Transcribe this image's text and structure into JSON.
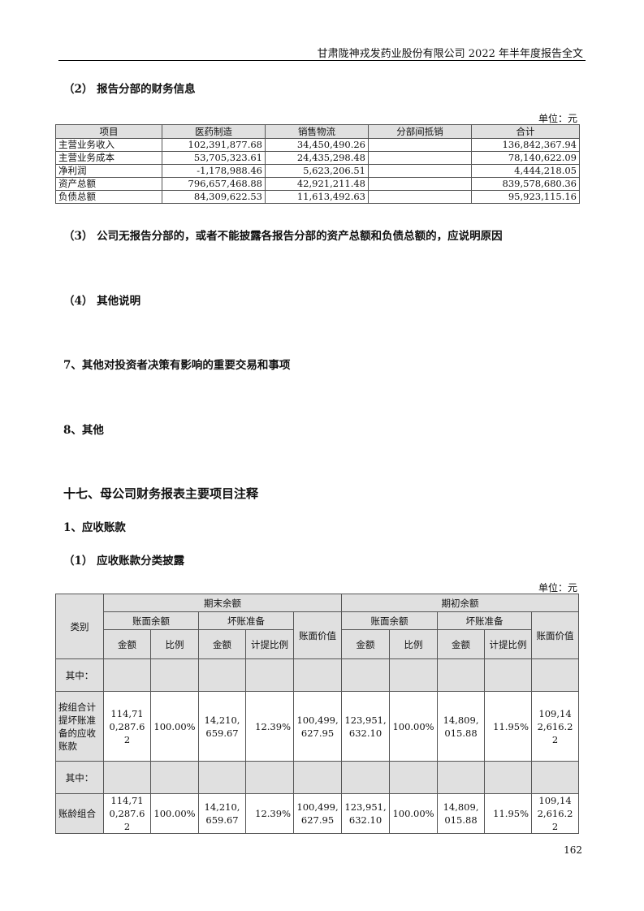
{
  "header": {
    "title": "甘肃陇神戎发药业股份有限公司 2022 年半年度报告全文"
  },
  "headings": {
    "h2": "（2） 报告分部的财务信息",
    "h3": "（3） 公司无报告分部的，或者不能披露各报告分部的资产总额和负债总额的，应说明原因",
    "h4": "（4） 其他说明",
    "s7": "7、其他对投资者决策有影响的重要交易和事项",
    "s8": "8、其他",
    "s17": "十七、母公司财务报表主要项目注释",
    "s1": "1、应收账款",
    "s1_1": "（1） 应收账款分类披露"
  },
  "unit": "单位：元",
  "segment_table": {
    "columns": [
      "项目",
      "医药制造",
      "销售物流",
      "分部间抵销",
      "合计"
    ],
    "rows": [
      [
        "主营业务收入",
        "102,391,877.68",
        "34,450,490.26",
        "",
        "136,842,367.94"
      ],
      [
        "主营业务成本",
        "53,705,323.61",
        "24,435,298.48",
        "",
        "78,140,622.09"
      ],
      [
        "净利润",
        "-1,178,988.46",
        "5,623,206.51",
        "",
        "4,444,218.05"
      ],
      [
        "资产总额",
        "796,657,468.88",
        "42,921,211.48",
        "",
        "839,578,680.36"
      ],
      [
        "负债总额",
        "84,309,622.53",
        "11,613,492.63",
        "",
        "95,923,115.16"
      ]
    ]
  },
  "receivable_table": {
    "category": "类别",
    "period_end": "期末余额",
    "period_begin": "期初余额",
    "book_balance": "账面余额",
    "bad_debt": "坏账准备",
    "book_value": "账面价值",
    "amount": "金额",
    "ratio": "比例",
    "provision_ratio": "计提比例",
    "among": "其中：",
    "rows": [
      [
        "按组合计提坏账准备的应收账款",
        "114,710,287.62",
        "100.00%",
        "14,210,659.67",
        "12.39%",
        "100,499,627.95",
        "123,951,632.10",
        "100.00%",
        "14,809,015.88",
        "11.95%",
        "109,142,616.22"
      ],
      [
        "账龄组合",
        "114,710,287.62",
        "100.00%",
        "14,210,659.67",
        "12.39%",
        "100,499,627.95",
        "123,951,632.10",
        "100.00%",
        "14,809,015.88",
        "11.95%",
        "109,142,616.22"
      ]
    ]
  },
  "page_number": "162"
}
